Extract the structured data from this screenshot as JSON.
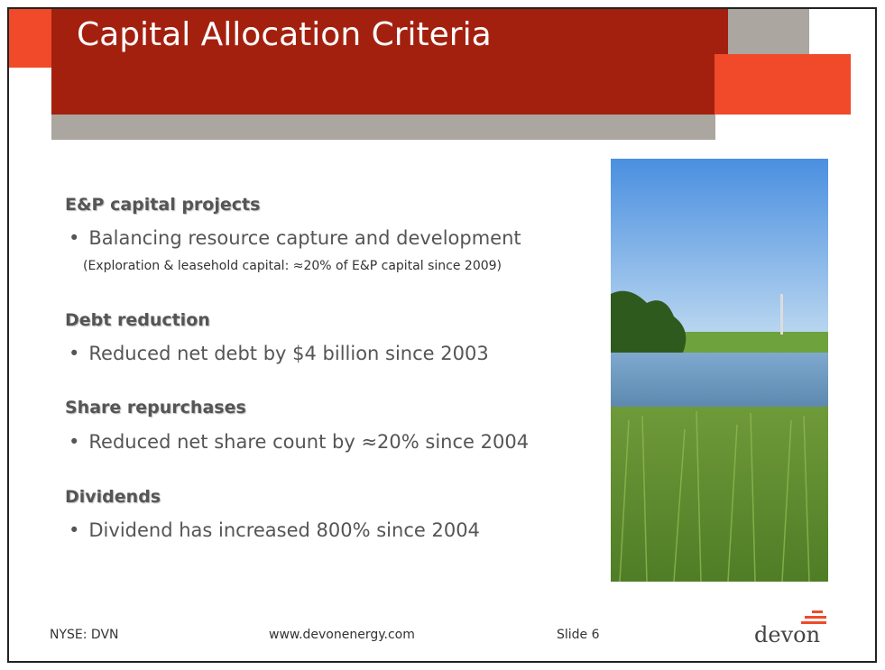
{
  "header": {
    "title": "Capital Allocation Criteria"
  },
  "sections": [
    {
      "heading": "E&P capital projects",
      "bullet": "Balancing resource capture and development",
      "note": "(Exploration & leasehold capital: ≈20% of E&P capital since 2009)"
    },
    {
      "heading": "Debt reduction",
      "bullet": "Reduced net debt by $4 billion since 2003"
    },
    {
      "heading": "Share repurchases",
      "bullet": "Reduced net share count by ≈20% since 2004"
    },
    {
      "heading": "Dividends",
      "bullet": "Dividend has increased 800% since 2004"
    }
  ],
  "footer": {
    "ticker": "NYSE: DVN",
    "website": "www.devonenergy.com",
    "slide": "Slide 6",
    "logo": "devon"
  }
}
